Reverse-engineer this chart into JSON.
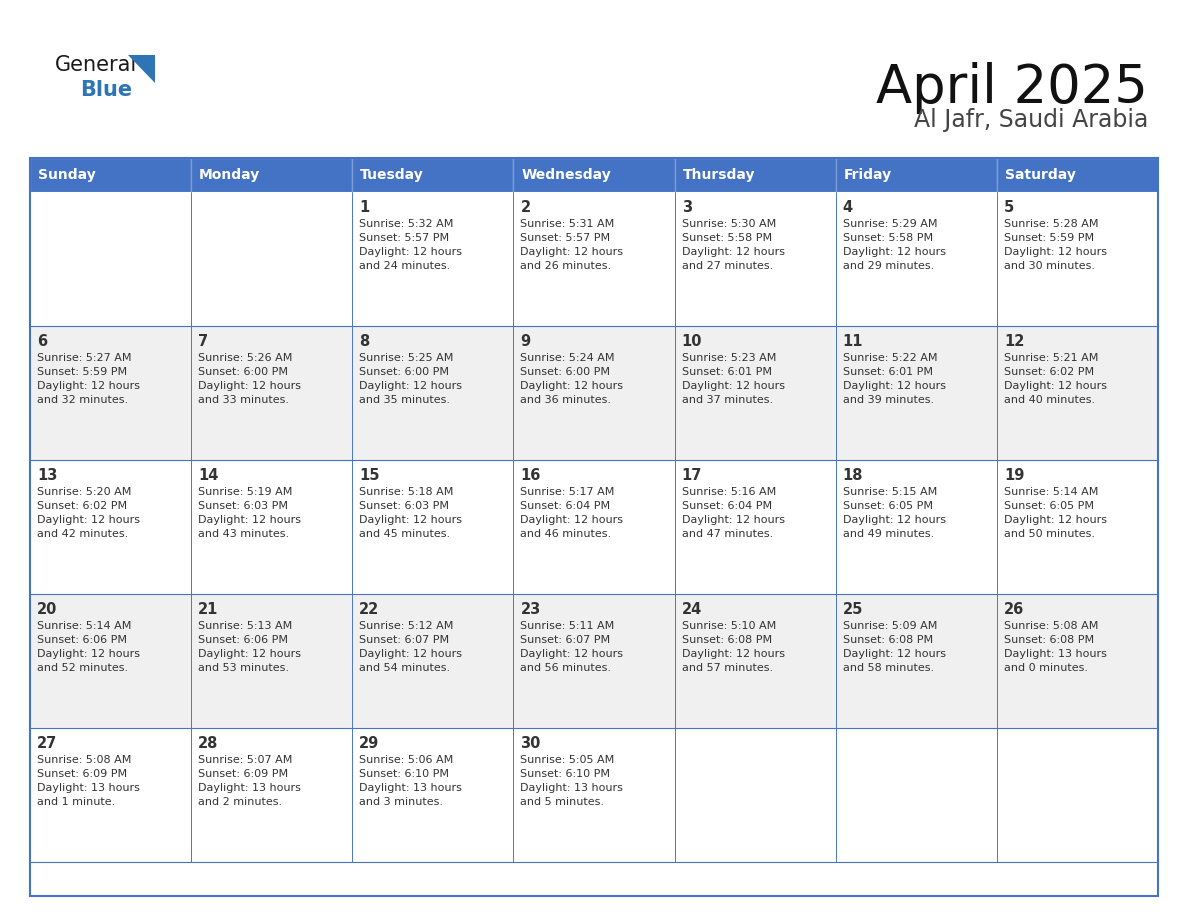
{
  "title": "April 2025",
  "subtitle": "Al Jafr, Saudi Arabia",
  "header_bg_color": "#4472C4",
  "header_text_color": "#FFFFFF",
  "cell_bg_even": "#FFFFFF",
  "cell_bg_odd": "#F0F0F0",
  "border_color": "#4472C4",
  "text_color": "#333333",
  "days_of_week": [
    "Sunday",
    "Monday",
    "Tuesday",
    "Wednesday",
    "Thursday",
    "Friday",
    "Saturday"
  ],
  "weeks": [
    [
      {
        "day": "",
        "info": ""
      },
      {
        "day": "",
        "info": ""
      },
      {
        "day": "1",
        "info": "Sunrise: 5:32 AM\nSunset: 5:57 PM\nDaylight: 12 hours\nand 24 minutes."
      },
      {
        "day": "2",
        "info": "Sunrise: 5:31 AM\nSunset: 5:57 PM\nDaylight: 12 hours\nand 26 minutes."
      },
      {
        "day": "3",
        "info": "Sunrise: 5:30 AM\nSunset: 5:58 PM\nDaylight: 12 hours\nand 27 minutes."
      },
      {
        "day": "4",
        "info": "Sunrise: 5:29 AM\nSunset: 5:58 PM\nDaylight: 12 hours\nand 29 minutes."
      },
      {
        "day": "5",
        "info": "Sunrise: 5:28 AM\nSunset: 5:59 PM\nDaylight: 12 hours\nand 30 minutes."
      }
    ],
    [
      {
        "day": "6",
        "info": "Sunrise: 5:27 AM\nSunset: 5:59 PM\nDaylight: 12 hours\nand 32 minutes."
      },
      {
        "day": "7",
        "info": "Sunrise: 5:26 AM\nSunset: 6:00 PM\nDaylight: 12 hours\nand 33 minutes."
      },
      {
        "day": "8",
        "info": "Sunrise: 5:25 AM\nSunset: 6:00 PM\nDaylight: 12 hours\nand 35 minutes."
      },
      {
        "day": "9",
        "info": "Sunrise: 5:24 AM\nSunset: 6:00 PM\nDaylight: 12 hours\nand 36 minutes."
      },
      {
        "day": "10",
        "info": "Sunrise: 5:23 AM\nSunset: 6:01 PM\nDaylight: 12 hours\nand 37 minutes."
      },
      {
        "day": "11",
        "info": "Sunrise: 5:22 AM\nSunset: 6:01 PM\nDaylight: 12 hours\nand 39 minutes."
      },
      {
        "day": "12",
        "info": "Sunrise: 5:21 AM\nSunset: 6:02 PM\nDaylight: 12 hours\nand 40 minutes."
      }
    ],
    [
      {
        "day": "13",
        "info": "Sunrise: 5:20 AM\nSunset: 6:02 PM\nDaylight: 12 hours\nand 42 minutes."
      },
      {
        "day": "14",
        "info": "Sunrise: 5:19 AM\nSunset: 6:03 PM\nDaylight: 12 hours\nand 43 minutes."
      },
      {
        "day": "15",
        "info": "Sunrise: 5:18 AM\nSunset: 6:03 PM\nDaylight: 12 hours\nand 45 minutes."
      },
      {
        "day": "16",
        "info": "Sunrise: 5:17 AM\nSunset: 6:04 PM\nDaylight: 12 hours\nand 46 minutes."
      },
      {
        "day": "17",
        "info": "Sunrise: 5:16 AM\nSunset: 6:04 PM\nDaylight: 12 hours\nand 47 minutes."
      },
      {
        "day": "18",
        "info": "Sunrise: 5:15 AM\nSunset: 6:05 PM\nDaylight: 12 hours\nand 49 minutes."
      },
      {
        "day": "19",
        "info": "Sunrise: 5:14 AM\nSunset: 6:05 PM\nDaylight: 12 hours\nand 50 minutes."
      }
    ],
    [
      {
        "day": "20",
        "info": "Sunrise: 5:14 AM\nSunset: 6:06 PM\nDaylight: 12 hours\nand 52 minutes."
      },
      {
        "day": "21",
        "info": "Sunrise: 5:13 AM\nSunset: 6:06 PM\nDaylight: 12 hours\nand 53 minutes."
      },
      {
        "day": "22",
        "info": "Sunrise: 5:12 AM\nSunset: 6:07 PM\nDaylight: 12 hours\nand 54 minutes."
      },
      {
        "day": "23",
        "info": "Sunrise: 5:11 AM\nSunset: 6:07 PM\nDaylight: 12 hours\nand 56 minutes."
      },
      {
        "day": "24",
        "info": "Sunrise: 5:10 AM\nSunset: 6:08 PM\nDaylight: 12 hours\nand 57 minutes."
      },
      {
        "day": "25",
        "info": "Sunrise: 5:09 AM\nSunset: 6:08 PM\nDaylight: 12 hours\nand 58 minutes."
      },
      {
        "day": "26",
        "info": "Sunrise: 5:08 AM\nSunset: 6:08 PM\nDaylight: 13 hours\nand 0 minutes."
      }
    ],
    [
      {
        "day": "27",
        "info": "Sunrise: 5:08 AM\nSunset: 6:09 PM\nDaylight: 13 hours\nand 1 minute."
      },
      {
        "day": "28",
        "info": "Sunrise: 5:07 AM\nSunset: 6:09 PM\nDaylight: 13 hours\nand 2 minutes."
      },
      {
        "day": "29",
        "info": "Sunrise: 5:06 AM\nSunset: 6:10 PM\nDaylight: 13 hours\nand 3 minutes."
      },
      {
        "day": "30",
        "info": "Sunrise: 5:05 AM\nSunset: 6:10 PM\nDaylight: 13 hours\nand 5 minutes."
      },
      {
        "day": "",
        "info": ""
      },
      {
        "day": "",
        "info": ""
      },
      {
        "day": "",
        "info": ""
      }
    ]
  ],
  "logo_general_color": "#1a1a1a",
  "logo_blue_color": "#2E75B6",
  "logo_triangle_color": "#2E75B6"
}
